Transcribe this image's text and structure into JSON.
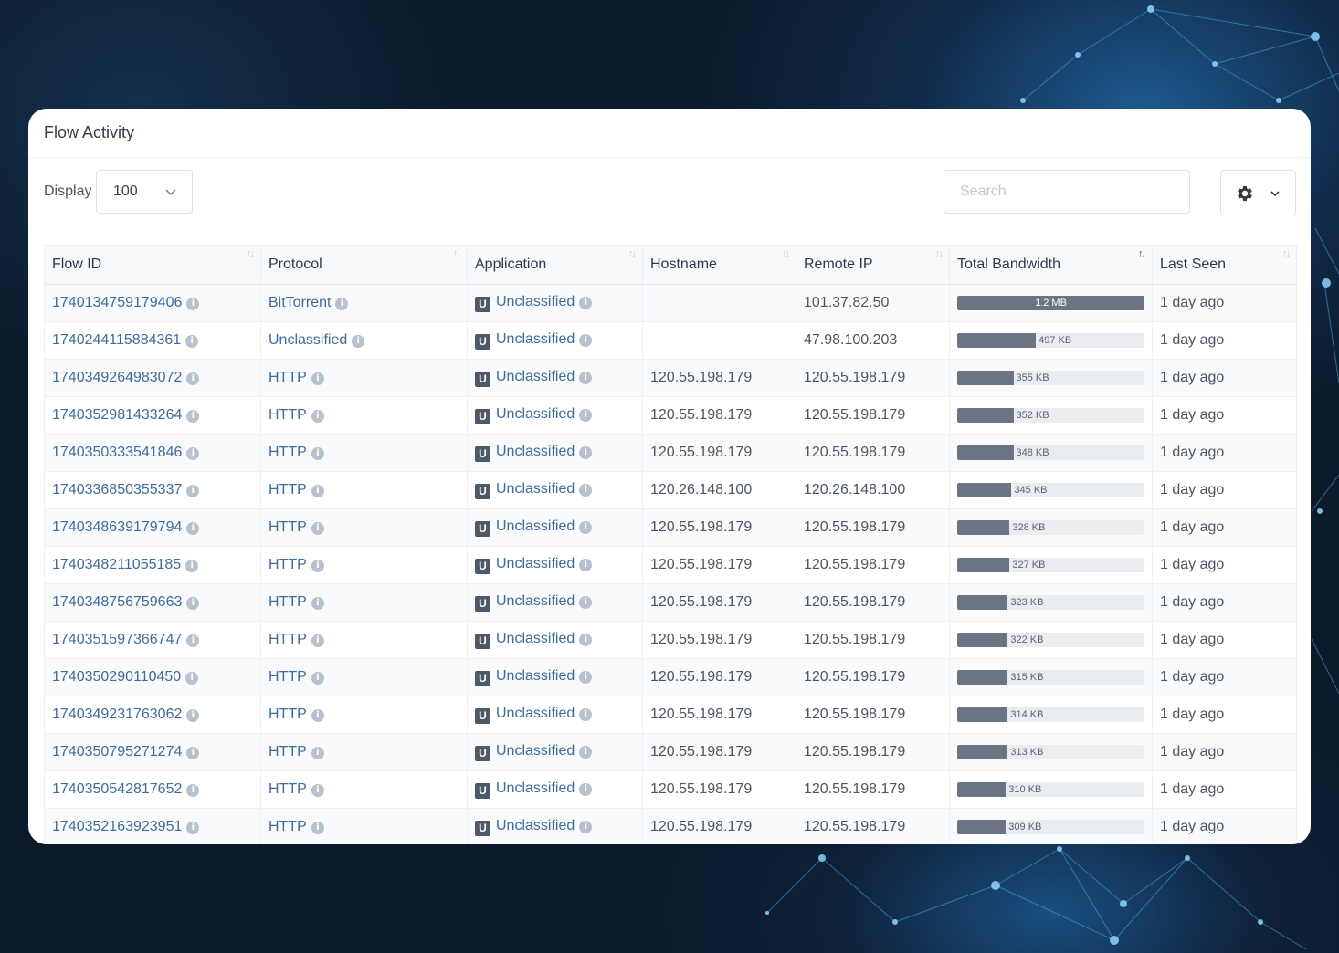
{
  "card": {
    "title": "Flow Activity"
  },
  "controls": {
    "display_label": "Display",
    "display_value": "100",
    "search_placeholder": "Search"
  },
  "table": {
    "columns": [
      "Flow ID",
      "Protocol",
      "Application",
      "Hostname",
      "Remote IP",
      "Total Bandwidth",
      "Last Seen"
    ],
    "rows": [
      {
        "flow_id": "1740134759179406",
        "protocol": "BitTorrent",
        "application": "Unclassified",
        "hostname": "",
        "remote_ip": "101.37.82.50",
        "bandwidth": "1.2 MB",
        "bandwidth_fraction": 1.0,
        "last_seen": "1 day ago"
      },
      {
        "flow_id": "1740244115884361",
        "protocol": "Unclassified",
        "application": "Unclassified",
        "hostname": "",
        "remote_ip": "47.98.100.203",
        "bandwidth": "497 KB",
        "bandwidth_fraction": 0.42,
        "last_seen": "1 day ago"
      },
      {
        "flow_id": "1740349264983072",
        "protocol": "HTTP",
        "application": "Unclassified",
        "hostname": "120.55.198.179",
        "remote_ip": "120.55.198.179",
        "bandwidth": "355 KB",
        "bandwidth_fraction": 0.3,
        "last_seen": "1 day ago"
      },
      {
        "flow_id": "1740352981433264",
        "protocol": "HTTP",
        "application": "Unclassified",
        "hostname": "120.55.198.179",
        "remote_ip": "120.55.198.179",
        "bandwidth": "352 KB",
        "bandwidth_fraction": 0.3,
        "last_seen": "1 day ago"
      },
      {
        "flow_id": "1740350333541846",
        "protocol": "HTTP",
        "application": "Unclassified",
        "hostname": "120.55.198.179",
        "remote_ip": "120.55.198.179",
        "bandwidth": "348 KB",
        "bandwidth_fraction": 0.3,
        "last_seen": "1 day ago"
      },
      {
        "flow_id": "1740336850355337",
        "protocol": "HTTP",
        "application": "Unclassified",
        "hostname": "120.26.148.100",
        "remote_ip": "120.26.148.100",
        "bandwidth": "345 KB",
        "bandwidth_fraction": 0.29,
        "last_seen": "1 day ago"
      },
      {
        "flow_id": "1740348639179794",
        "protocol": "HTTP",
        "application": "Unclassified",
        "hostname": "120.55.198.179",
        "remote_ip": "120.55.198.179",
        "bandwidth": "328 KB",
        "bandwidth_fraction": 0.28,
        "last_seen": "1 day ago"
      },
      {
        "flow_id": "1740348211055185",
        "protocol": "HTTP",
        "application": "Unclassified",
        "hostname": "120.55.198.179",
        "remote_ip": "120.55.198.179",
        "bandwidth": "327 KB",
        "bandwidth_fraction": 0.28,
        "last_seen": "1 day ago"
      },
      {
        "flow_id": "1740348756759663",
        "protocol": "HTTP",
        "application": "Unclassified",
        "hostname": "120.55.198.179",
        "remote_ip": "120.55.198.179",
        "bandwidth": "323 KB",
        "bandwidth_fraction": 0.27,
        "last_seen": "1 day ago"
      },
      {
        "flow_id": "1740351597366747",
        "protocol": "HTTP",
        "application": "Unclassified",
        "hostname": "120.55.198.179",
        "remote_ip": "120.55.198.179",
        "bandwidth": "322 KB",
        "bandwidth_fraction": 0.27,
        "last_seen": "1 day ago"
      },
      {
        "flow_id": "1740350290110450",
        "protocol": "HTTP",
        "application": "Unclassified",
        "hostname": "120.55.198.179",
        "remote_ip": "120.55.198.179",
        "bandwidth": "315 KB",
        "bandwidth_fraction": 0.27,
        "last_seen": "1 day ago"
      },
      {
        "flow_id": "1740349231763062",
        "protocol": "HTTP",
        "application": "Unclassified",
        "hostname": "120.55.198.179",
        "remote_ip": "120.55.198.179",
        "bandwidth": "314 KB",
        "bandwidth_fraction": 0.27,
        "last_seen": "1 day ago"
      },
      {
        "flow_id": "1740350795271274",
        "protocol": "HTTP",
        "application": "Unclassified",
        "hostname": "120.55.198.179",
        "remote_ip": "120.55.198.179",
        "bandwidth": "313 KB",
        "bandwidth_fraction": 0.27,
        "last_seen": "1 day ago"
      },
      {
        "flow_id": "1740350542817652",
        "protocol": "HTTP",
        "application": "Unclassified",
        "hostname": "120.55.198.179",
        "remote_ip": "120.55.198.179",
        "bandwidth": "310 KB",
        "bandwidth_fraction": 0.26,
        "last_seen": "1 day ago"
      },
      {
        "flow_id": "1740352163923951",
        "protocol": "HTTP",
        "application": "Unclassified",
        "hostname": "120.55.198.179",
        "remote_ip": "120.55.198.179",
        "bandwidth": "309 KB",
        "bandwidth_fraction": 0.26,
        "last_seen": "1 day ago"
      }
    ]
  },
  "icons": {
    "info": "info-icon",
    "app_badge": "U",
    "sort": "sort-icon",
    "settings": "gear-icon",
    "dropdown": "chevron-down-icon"
  },
  "colors": {
    "link": "#3f6b9c",
    "bandwidth_bar": "#6b7482",
    "bandwidth_track": "#e9ecf1",
    "app_badge": "#4d5868"
  }
}
